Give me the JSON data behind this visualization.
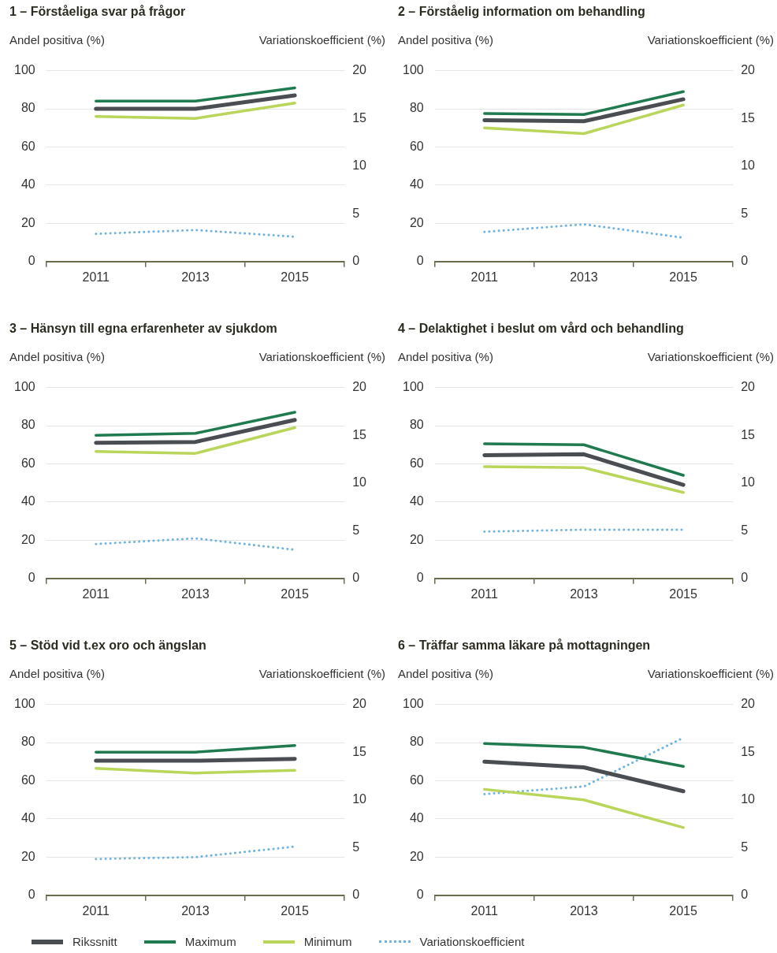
{
  "chart_data": [
    {
      "type": "line",
      "title": "1 – Förståeliga svar på frågor",
      "ylabel": "Andel positiva (%)",
      "y2label": "Variationskoefficient (%)",
      "categories": [
        "2011",
        "2013",
        "2015"
      ],
      "ylim": [
        0,
        100
      ],
      "yticks": [
        0,
        20,
        40,
        60,
        80,
        100
      ],
      "y2lim": [
        0,
        20
      ],
      "y2ticks": [
        0,
        5,
        10,
        15,
        20
      ],
      "grid": "y",
      "legend": "bottom",
      "series": [
        {
          "name": "Rikssnitt",
          "color": "#4a4d52",
          "values": [
            80,
            80,
            87
          ]
        },
        {
          "name": "Maximum",
          "color": "#1f7a4f",
          "values": [
            84,
            84,
            91
          ]
        },
        {
          "name": "Minimum",
          "color": "#b9d55a",
          "values": [
            76,
            75,
            83
          ]
        },
        {
          "name": "Variationskoefficient",
          "color": "#6fb3e0",
          "axis": "y2",
          "line_style": "dotted",
          "values": [
            2.9,
            3.3,
            2.6
          ]
        }
      ]
    },
    {
      "type": "line",
      "title": "2 – Förståelig information om behandling",
      "ylabel": "Andel positiva (%)",
      "y2label": "Variationskoefficient (%)",
      "categories": [
        "2011",
        "2013",
        "2015"
      ],
      "ylim": [
        0,
        100
      ],
      "yticks": [
        0,
        20,
        40,
        60,
        80,
        100
      ],
      "y2lim": [
        0,
        20
      ],
      "y2ticks": [
        0,
        5,
        10,
        15,
        20
      ],
      "grid": "y",
      "series": [
        {
          "color": "#4a4d52",
          "values": [
            74,
            73.5,
            85
          ]
        },
        {
          "color": "#1f7a4f",
          "values": [
            77.5,
            77,
            89
          ]
        },
        {
          "color": "#b9d55a",
          "values": [
            70,
            67,
            82
          ]
        },
        {
          "color": "#6fb3e0",
          "axis": "y2",
          "line_style": "dotted",
          "values": [
            3.1,
            3.9,
            2.5
          ]
        }
      ]
    },
    {
      "type": "line",
      "title": "3 – Hänsyn till egna erfarenheter av sjukdom",
      "ylabel": "Andel positiva (%)",
      "y2label": "Variationskoefficient (%)",
      "categories": [
        "2011",
        "2013",
        "2015"
      ],
      "ylim": [
        0,
        100
      ],
      "yticks": [
        0,
        20,
        40,
        60,
        80,
        100
      ],
      "y2lim": [
        0,
        20
      ],
      "y2ticks": [
        0,
        5,
        10,
        15,
        20
      ],
      "grid": "y",
      "series": [
        {
          "color": "#4a4d52",
          "values": [
            71,
            71.5,
            83
          ]
        },
        {
          "color": "#1f7a4f",
          "values": [
            75,
            76,
            87
          ]
        },
        {
          "color": "#b9d55a",
          "values": [
            66.5,
            65.5,
            79
          ]
        },
        {
          "color": "#6fb3e0",
          "axis": "y2",
          "line_style": "dotted",
          "values": [
            3.6,
            4.2,
            3.0
          ]
        }
      ]
    },
    {
      "type": "line",
      "title": "4 – Delaktighet i beslut om vård och behandling",
      "ylabel": "Andel positiva (%)",
      "y2label": "Variationskoefficient (%)",
      "categories": [
        "2011",
        "2013",
        "2015"
      ],
      "ylim": [
        0,
        100
      ],
      "yticks": [
        0,
        20,
        40,
        60,
        80,
        100
      ],
      "y2lim": [
        0,
        20
      ],
      "y2ticks": [
        0,
        5,
        10,
        15,
        20
      ],
      "grid": "y",
      "series": [
        {
          "color": "#4a4d52",
          "values": [
            64.5,
            65,
            49
          ]
        },
        {
          "color": "#1f7a4f",
          "values": [
            70.5,
            70,
            54
          ]
        },
        {
          "color": "#b9d55a",
          "values": [
            58.5,
            58,
            45
          ]
        },
        {
          "color": "#6fb3e0",
          "axis": "y2",
          "line_style": "dotted",
          "values": [
            4.9,
            5.1,
            5.1
          ]
        }
      ]
    },
    {
      "type": "line",
      "title": "5 – Stöd vid t.ex oro och ängslan",
      "ylabel": "Andel positiva (%)",
      "y2label": "Variationskoefficient (%)",
      "categories": [
        "2011",
        "2013",
        "2015"
      ],
      "ylim": [
        0,
        100
      ],
      "yticks": [
        0,
        20,
        40,
        60,
        80,
        100
      ],
      "y2lim": [
        0,
        20
      ],
      "y2ticks": [
        0,
        5,
        10,
        15,
        20
      ],
      "grid": "y",
      "series": [
        {
          "color": "#4a4d52",
          "values": [
            70.5,
            70.5,
            71.5
          ]
        },
        {
          "color": "#1f7a4f",
          "values": [
            75,
            75,
            78.5
          ]
        },
        {
          "color": "#b9d55a",
          "values": [
            66.5,
            64,
            65.5
          ]
        },
        {
          "color": "#6fb3e0",
          "axis": "y2",
          "line_style": "dotted",
          "values": [
            3.8,
            4.0,
            5.1
          ]
        }
      ]
    },
    {
      "type": "line",
      "title": "6 – Träffar samma läkare på mottagningen",
      "ylabel": "Andel positiva (%)",
      "y2label": "Variationskoefficient (%)",
      "categories": [
        "2011",
        "2013",
        "2015"
      ],
      "ylim": [
        0,
        100
      ],
      "yticks": [
        0,
        20,
        40,
        60,
        80,
        100
      ],
      "y2lim": [
        0,
        20
      ],
      "y2ticks": [
        0,
        5,
        10,
        15,
        20
      ],
      "grid": "y",
      "series": [
        {
          "color": "#4a4d52",
          "values": [
            70,
            67,
            54.5
          ]
        },
        {
          "color": "#1f7a4f",
          "values": [
            79.5,
            77.5,
            67.5
          ]
        },
        {
          "color": "#b9d55a",
          "values": [
            55.5,
            50,
            35.5
          ]
        },
        {
          "color": "#6fb3e0",
          "axis": "y2",
          "line_style": "dotted",
          "values": [
            10.6,
            11.4,
            16.5
          ]
        }
      ]
    }
  ]
}
